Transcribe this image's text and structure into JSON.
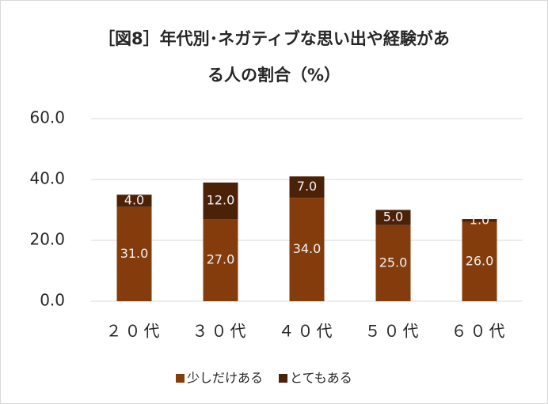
{
  "chart_data": {
    "type": "stacked_bar",
    "title": [
      "［図8］年代別･ネガティブな思い出や経験があ",
      "る人の割合（%）"
    ],
    "categories": [
      "２０代",
      "３０代",
      "４０代",
      "５０代",
      "６０代"
    ],
    "series": [
      {
        "name": "少しだけある",
        "color": "#843c0c",
        "values": [
          31,
          27,
          34,
          25,
          26
        ],
        "value_labels": [
          "31.0",
          "27.0",
          "34.0",
          "25.0",
          "26.0"
        ]
      },
      {
        "name": "とてもある",
        "color": "#4b2208",
        "values": [
          4,
          12,
          7,
          5,
          1
        ],
        "value_labels": [
          "4.0",
          "12.0",
          "7.0",
          "5.0",
          "1.0"
        ]
      }
    ],
    "ylim": [
      0,
      60
    ],
    "yticks": [
      {
        "value": 0,
        "label": "0.0"
      },
      {
        "value": 20,
        "label": "20.0"
      },
      {
        "value": 40,
        "label": "40.0"
      },
      {
        "value": 60,
        "label": "60.0"
      }
    ],
    "grid": true,
    "legend": "bottom"
  }
}
